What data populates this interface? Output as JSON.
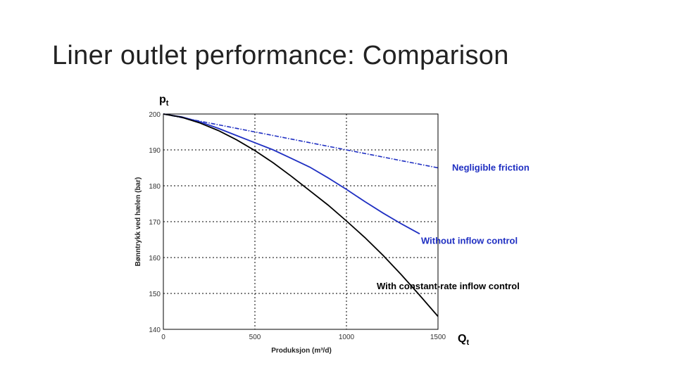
{
  "slide": {
    "title": "Liner outlet performance: Comparison"
  },
  "colors": {
    "blue": "#1f2fc2",
    "black": "#000000",
    "grid": "#000000"
  },
  "chart_data": {
    "type": "line",
    "title": "",
    "xlabel": "Produksjon (m³/d)",
    "ylabel": "Bønntrykk ved hælen (bar)",
    "x_symbol": "Qt",
    "y_symbol": "pt",
    "xlim": [
      0,
      1500
    ],
    "ylim": [
      140,
      200
    ],
    "xticks": [
      0,
      500,
      1000,
      1500
    ],
    "yticks": [
      140,
      150,
      160,
      170,
      180,
      190,
      200
    ],
    "grid": true,
    "series": [
      {
        "name": "Negligible friction",
        "color": "#1f2fc2",
        "style": "dashdot",
        "x": [
          0,
          500,
          1000,
          1500
        ],
        "y": [
          200,
          195,
          190,
          185
        ]
      },
      {
        "name": "Without inflow control",
        "color": "#1f2fc2",
        "style": "solid",
        "x": [
          0,
          100,
          200,
          300,
          400,
          500,
          600,
          700,
          800,
          900,
          1000,
          1100,
          1200,
          1300,
          1400
        ],
        "y": [
          200,
          199.2,
          197.8,
          196,
          194,
          192,
          190,
          187.6,
          185.2,
          182.2,
          179,
          175.6,
          172.4,
          169.4,
          166.6
        ]
      },
      {
        "name": "With constant-rate inflow control",
        "color": "#000000",
        "style": "solid",
        "x": [
          0,
          100,
          200,
          300,
          400,
          500,
          600,
          700,
          800,
          900,
          1000,
          1100,
          1200,
          1300,
          1400,
          1500
        ],
        "y": [
          200,
          199.1,
          197.5,
          195.4,
          192.8,
          189.8,
          186.4,
          182.6,
          178.6,
          174.6,
          170.2,
          165.6,
          160.6,
          155.2,
          149.5,
          143.6
        ]
      }
    ]
  }
}
